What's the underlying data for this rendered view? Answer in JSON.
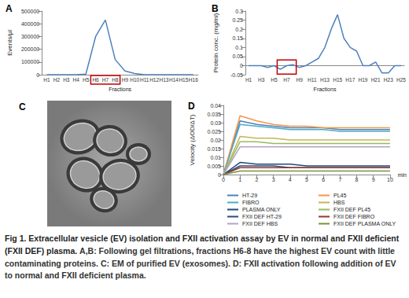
{
  "chart_data": [
    {
      "type": "line",
      "title": "A",
      "x_label": "Fractions",
      "y_label": "Events/µl",
      "categories": [
        "H1",
        "H2",
        "H3",
        "H4",
        "H5",
        "H6",
        "H7",
        "H8",
        "H9",
        "H10",
        "H11",
        "H12",
        "H13",
        "H14",
        "H15",
        "H16"
      ],
      "values": [
        0,
        0,
        0,
        0,
        5000,
        300000,
        430000,
        120000,
        30000,
        10000,
        0,
        0,
        0,
        0,
        0,
        0
      ],
      "color": "#4f81bd",
      "ylim": [
        0,
        500000
      ],
      "yticks": [
        0,
        100000,
        200000,
        300000,
        400000,
        500000
      ],
      "grid": false,
      "highlight": [
        5,
        7
      ]
    },
    {
      "type": "line",
      "title": "B",
      "x_label": "Fractions",
      "y_label": "Protein conc. (mg/ml)",
      "categories": [
        "H1",
        null,
        "H3",
        null,
        "H5",
        null,
        "H7",
        null,
        "H9",
        null,
        "H11",
        null,
        "H13",
        null,
        "H15",
        null,
        "H17",
        null,
        "H19",
        null,
        "H21",
        null,
        "H23",
        null,
        "H25"
      ],
      "values": [
        0,
        0,
        0,
        -0.01,
        0,
        -0.02,
        0,
        0.005,
        -0.01,
        0,
        0.02,
        0.04,
        0.1,
        0.2,
        0.28,
        0.15,
        0.1,
        0.08,
        0,
        0,
        0.02,
        -0.04,
        -0.04,
        0,
        0
      ],
      "color": "#4f81bd",
      "ylim": [
        -0.05,
        0.3
      ],
      "yticks": [
        -0.05,
        0,
        0.05,
        0.1,
        0.15,
        0.2,
        0.25,
        0.3
      ],
      "grid": false,
      "highlight": [
        5,
        7
      ]
    },
    {
      "type": "line",
      "title": "D",
      "x_label": "min",
      "y_label": "Velocity (ΔOD/ΔT)",
      "x": [
        0,
        1,
        2,
        3,
        4,
        5,
        6,
        7,
        8,
        9,
        10
      ],
      "xlim": [
        0,
        10
      ],
      "xticks": [
        0,
        1,
        2,
        3,
        4,
        5,
        6,
        7,
        8,
        9,
        10
      ],
      "ylim": [
        0,
        0.04
      ],
      "yticks": [
        0,
        0.005,
        0.01,
        0.015,
        0.02,
        0.025,
        0.03,
        0.035,
        0.04
      ],
      "grid": false,
      "legend": "bottom",
      "series": [
        {
          "name": "HT-29",
          "color": "#4f81bd",
          "values": [
            0,
            0.031,
            0.029,
            0.028,
            0.027,
            0.027,
            0.027,
            0.026,
            0.026,
            0.026,
            0.026
          ]
        },
        {
          "name": "PL45",
          "color": "#f79646",
          "values": [
            0,
            0.034,
            0.031,
            0.029,
            0.028,
            0.028,
            0.027,
            0.027,
            0.027,
            0.027,
            0.027
          ]
        },
        {
          "name": "FIBRO",
          "color": "#4bacc6",
          "values": [
            0,
            0.029,
            0.028,
            0.027,
            0.026,
            0.026,
            0.026,
            0.025,
            0.025,
            0.025,
            0.025
          ]
        },
        {
          "name": "HBS",
          "color": "#c3b55a",
          "values": [
            0,
            0.022,
            0.021,
            0.021,
            0.02,
            0.02,
            0.02,
            0.02,
            0.02,
            0.02,
            0.02
          ]
        },
        {
          "name": "PLASMA ONLY",
          "color": "#1f497d",
          "values": [
            0,
            0.007,
            0.006,
            0.006,
            0.006,
            0.005,
            0.005,
            0.005,
            0.005,
            0.005,
            0.005
          ]
        },
        {
          "name": "FXII DEF PL45",
          "color": "#9bbb59",
          "values": [
            0,
            0.019,
            0.019,
            0.018,
            0.018,
            0.018,
            0.018,
            0.018,
            0.018,
            0.018,
            0.018
          ]
        },
        {
          "name": "FXII DEF HT-29",
          "color": "#2c4d75",
          "values": [
            0,
            0.005,
            0.005,
            0.005,
            0.004,
            0.004,
            0.004,
            0.004,
            0.004,
            0.004,
            0.004
          ]
        },
        {
          "name": "FXII DEF FIBRO",
          "color": "#953735",
          "values": [
            0,
            0.004,
            0.004,
            0.004,
            0.004,
            0.004,
            0.004,
            0.004,
            0.004,
            0.004,
            0.004
          ]
        },
        {
          "name": "FXII DEF HBS",
          "color": "#b3a2c7",
          "values": [
            0,
            0.016,
            0.016,
            0.016,
            0.016,
            0.016,
            0.016,
            0.016,
            0.016,
            0.016,
            0.016
          ]
        },
        {
          "name": "FXII DEF PLASMA ONLY",
          "color": "#77933c",
          "values": [
            0,
            0.002,
            0.002,
            0.002,
            0.002,
            0.002,
            0.002,
            0.002,
            0.002,
            0.002,
            0.002
          ]
        }
      ]
    }
  ],
  "panel_c": {
    "label": "C"
  },
  "caption": {
    "heading": "Fig 1. Extracellular vesicle (EV) isolation and FXII activation assay by EV in normal and FXII deficient (FXII DEF) plasma.",
    "body": "A,B: Following gel filtrations, fractions H6-8 have the highest EV count with little contaminating proteins. C: EM of purified EV (exosomes). D: FXII activation following addition of EV to normal and FXII deficient plasma."
  }
}
